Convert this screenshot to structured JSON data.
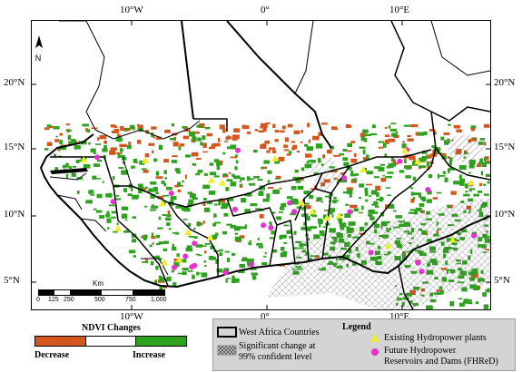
{
  "map": {
    "lon_labels": [
      "10°W",
      "0°",
      "10°E"
    ],
    "lat_labels": [
      "20°N",
      "15°N",
      "10°N",
      "5°N"
    ],
    "north_arrow": "N",
    "colors": {
      "decrease": "#d2561e",
      "increase": "#2ea21e",
      "border": "#000000",
      "existing_plant": "#f0ee2a",
      "future_dam": "#e82fcf",
      "hatch": "#555555"
    }
  },
  "scalebar": {
    "unit": "Km",
    "ticks": [
      "0",
      "125",
      "250",
      "500",
      "750",
      "1,000"
    ]
  },
  "ndvi_legend": {
    "title": "NDVI Changes",
    "decrease_label": "Decrease",
    "increase_label": "Increase"
  },
  "legend": {
    "title": "Legend",
    "countries": "West Africa Countries",
    "significant_line1": "Significant change at",
    "significant_line2": "99% confident level",
    "existing": "Existing Hydropower plants",
    "future_line1": "Future Hydropower",
    "future_line2": "Reservoirs and Dams (FHReD)"
  }
}
